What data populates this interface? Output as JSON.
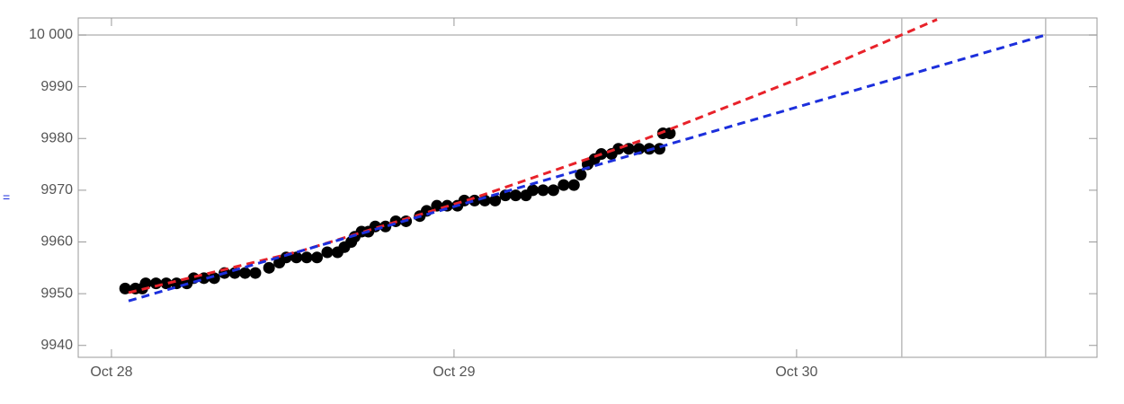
{
  "chart_data": {
    "type": "scatter",
    "annotation": "=",
    "x": [
      28.04,
      28.07,
      28.09,
      28.1,
      28.13,
      28.16,
      28.19,
      28.22,
      28.24,
      28.27,
      28.3,
      28.33,
      28.36,
      28.39,
      28.42,
      28.46,
      28.49,
      28.51,
      28.54,
      28.57,
      28.6,
      28.63,
      28.66,
      28.68,
      28.7,
      28.71,
      28.73,
      28.75,
      28.77,
      28.8,
      28.83,
      28.86,
      28.9,
      28.92,
      28.95,
      28.98,
      29.01,
      29.03,
      29.06,
      29.09,
      29.12,
      29.15,
      29.18,
      29.21,
      29.23,
      29.26,
      29.29,
      29.32,
      29.35,
      29.37,
      29.39,
      29.41,
      29.43,
      29.46,
      29.48,
      29.51,
      29.54,
      29.57,
      29.6,
      29.61,
      29.63
    ],
    "values": [
      9951,
      9951,
      9951,
      9952,
      9952,
      9952,
      9952,
      9952,
      9953,
      9953,
      9953,
      9954,
      9954,
      9954,
      9954,
      9955,
      9956,
      9957,
      9957,
      9957,
      9957,
      9958,
      9958,
      9959,
      9960,
      9961,
      9962,
      9962,
      9963,
      9963,
      9964,
      9964,
      9965,
      9966,
      9967,
      9967,
      9967,
      9968,
      9968,
      9968,
      9968,
      9969,
      9969,
      9969,
      9970,
      9970,
      9970,
      9971,
      9971,
      9973,
      9975,
      9976,
      9977,
      9977,
      9978,
      9978,
      9978,
      9978,
      9978,
      9981,
      9981
    ],
    "color": "#000000",
    "fits": [
      {
        "color": "#e8222a",
        "x": [
          28.05,
          28.55,
          29.05,
          29.55,
          30.05,
          30.41
        ],
        "values": [
          9950.2,
          9958.2,
          9968.3,
          9979.7,
          9992.7,
          10003.0
        ]
      },
      {
        "color": "#1c2fdc",
        "x": [
          28.05,
          30.727
        ],
        "values": [
          9948.6,
          10000
        ]
      }
    ],
    "grid_x": [
      30.307,
      30.727
    ],
    "grid_y": [
      10000
    ],
    "xlim": [
      27.903,
      30.877
    ],
    "ylim": [
      9937.7,
      10003.3
    ],
    "xticks": [
      {
        "value": 28,
        "label": "Oct 28"
      },
      {
        "value": 29,
        "label": "Oct 29"
      },
      {
        "value": 30,
        "label": "Oct 30"
      }
    ],
    "yticks": [
      9940,
      9950,
      9960,
      9970,
      9980,
      9990,
      {
        "value": 10000,
        "label": "10 000"
      }
    ]
  }
}
